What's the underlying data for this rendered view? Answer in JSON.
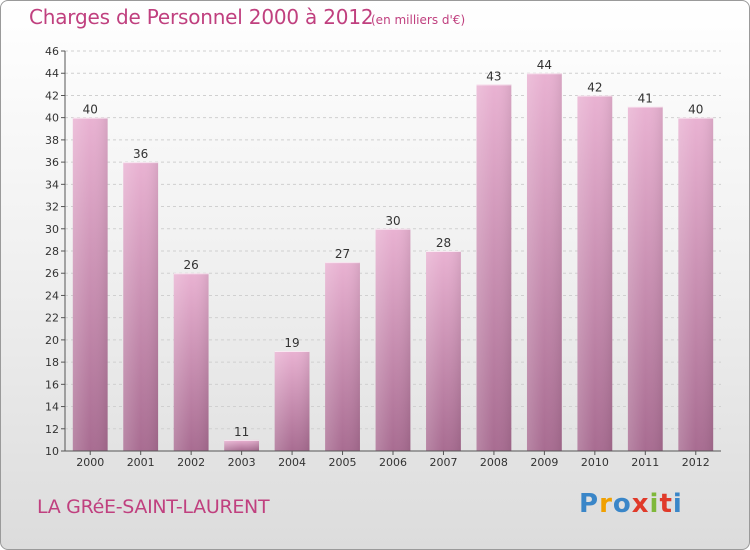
{
  "header": {
    "title": "Charges de Personnel 2000 à 2012",
    "subtitle": "(en milliers d'€)"
  },
  "footer": {
    "commune": "LA GRéE-SAINT-LAURENT",
    "brand": [
      "P",
      "r",
      "o",
      "x",
      "i",
      "t",
      "i"
    ],
    "brand_colors": [
      "#3a86c8",
      "#f0a000",
      "#3a86c8",
      "#e03a2a",
      "#7fb83a",
      "#e03a2a",
      "#3a86c8"
    ]
  },
  "colors": {
    "bar_top": "#e9b2d2",
    "bar_bottom": "#a86c91",
    "grid": "#d0d0d0",
    "text": "#c0407f"
  },
  "chart_data": {
    "type": "bar",
    "title": "Charges de Personnel 2000 à 2012",
    "subtitle": "(en milliers d'€)",
    "categories": [
      "2000",
      "2001",
      "2002",
      "2003",
      "2004",
      "2005",
      "2006",
      "2007",
      "2008",
      "2009",
      "2010",
      "2011",
      "2012"
    ],
    "values": [
      40,
      36,
      26,
      11,
      19,
      27,
      30,
      28,
      43,
      44,
      42,
      41,
      40
    ],
    "ylim": [
      10,
      46
    ],
    "yticks": [
      10,
      12,
      14,
      16,
      18,
      20,
      22,
      24,
      26,
      28,
      30,
      32,
      34,
      36,
      38,
      40,
      42,
      44,
      46
    ],
    "grid": true,
    "legend": "none"
  }
}
